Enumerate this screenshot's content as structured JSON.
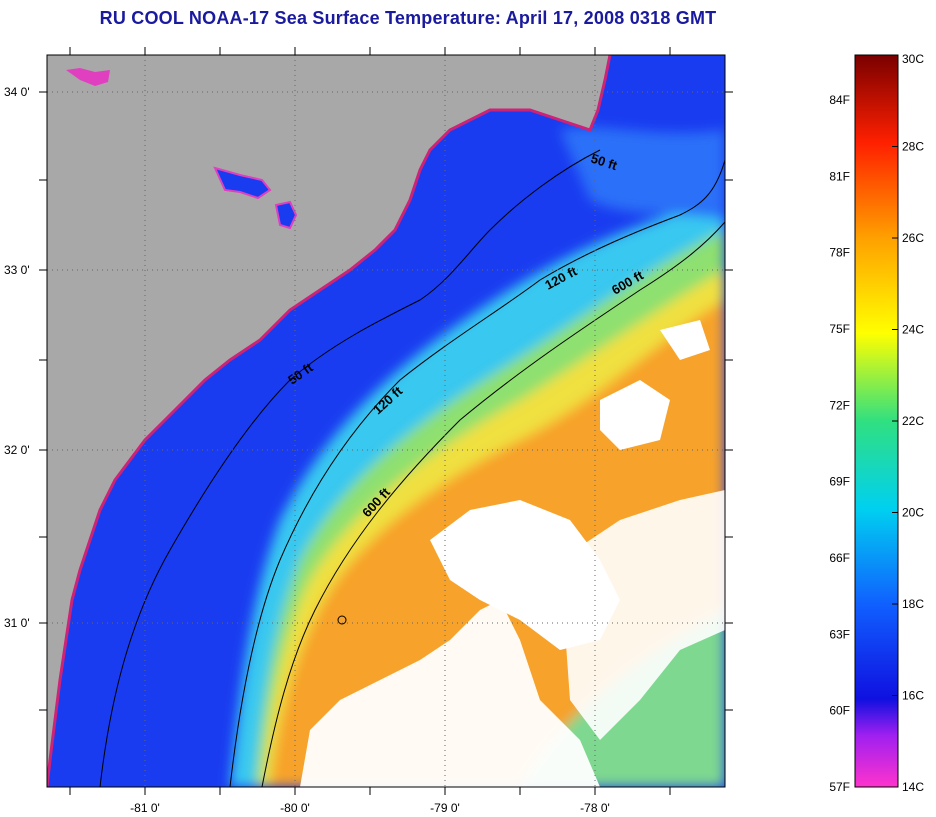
{
  "title": "RU COOL  NOAA-17  Sea Surface Temperature:  April 17, 2008 0318 GMT",
  "map": {
    "lat_labels": [
      {
        "label": "34 0'",
        "lat": 34.0
      },
      {
        "label": "33 0'",
        "lat": 33.0
      },
      {
        "label": "32 0'",
        "lat": 32.0
      },
      {
        "label": "31 0'",
        "lat": 31.0
      }
    ],
    "lon_labels": [
      {
        "label": "-81 0'",
        "lon": -81.0
      },
      {
        "label": "-80 0'",
        "lon": -80.0
      },
      {
        "label": "-79 0'",
        "lon": -79.0
      },
      {
        "label": "-78 0'",
        "lon": -78.0
      }
    ],
    "contour_labels": [
      {
        "id": "c50a",
        "text": "50 ft"
      },
      {
        "id": "c50b",
        "text": "50 ft"
      },
      {
        "id": "c120a",
        "text": "120 ft"
      },
      {
        "id": "c120b",
        "text": "120 ft"
      },
      {
        "id": "c600a",
        "text": "600 ft"
      },
      {
        "id": "c600b",
        "text": "600 ft"
      }
    ],
    "colors": {
      "land": "#a6a6a6",
      "cloud": "#ffffff",
      "cold_water": "#1030ff",
      "shelf_water": "#30b8f0",
      "gulf_stream": "#f7a523"
    }
  },
  "colorbar": {
    "celsius": [
      "30C",
      "28C",
      "26C",
      "24C",
      "22C",
      "20C",
      "18C",
      "16C",
      "14C"
    ],
    "fahrenheit": [
      "84F",
      "81F",
      "78F",
      "75F",
      "72F",
      "69F",
      "66F",
      "63F",
      "60F",
      "57F"
    ]
  }
}
